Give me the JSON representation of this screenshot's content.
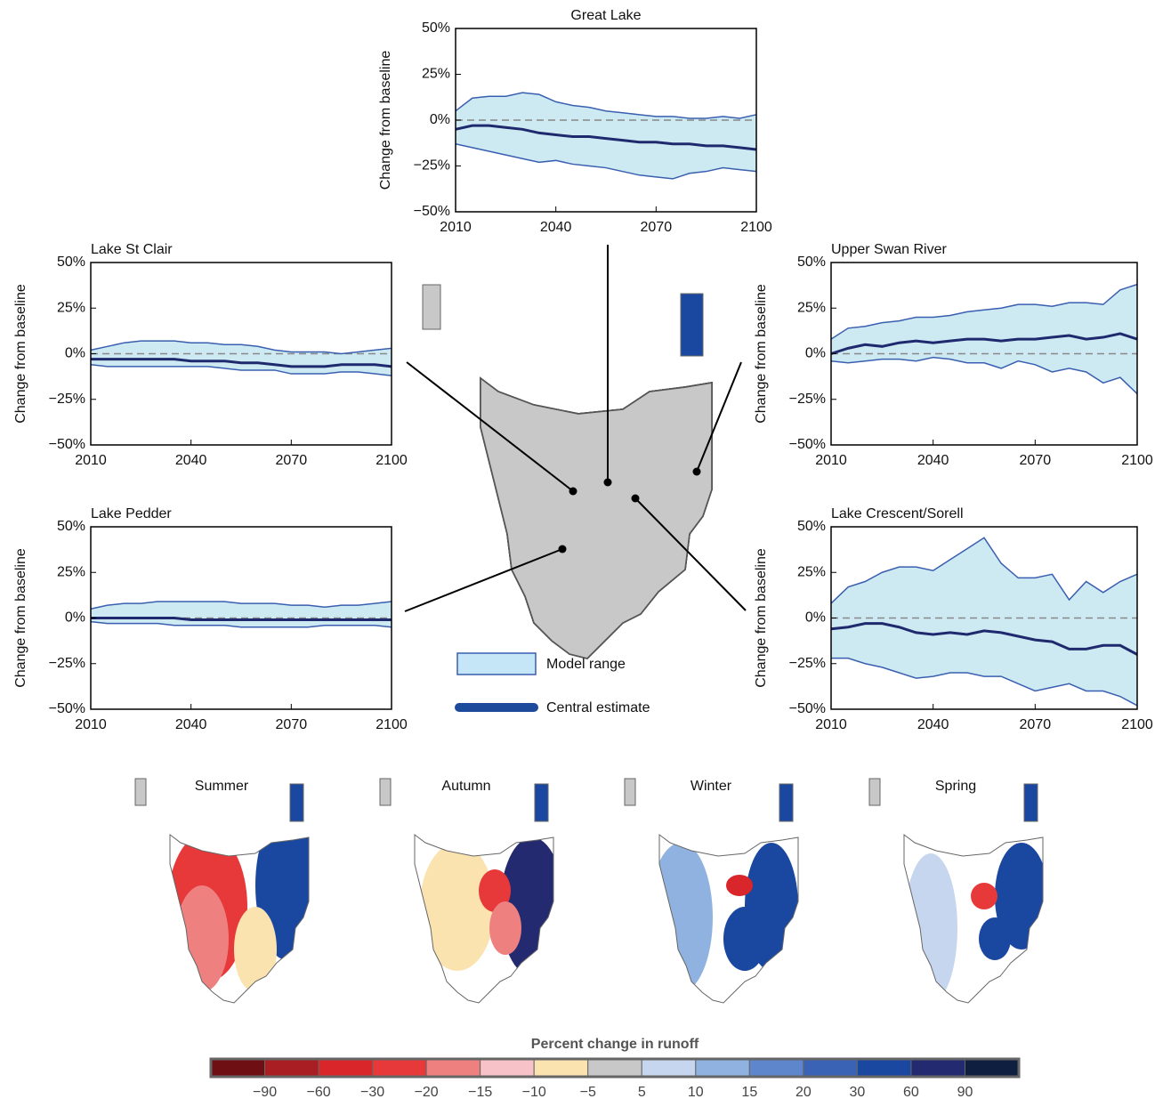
{
  "chart_data": [
    {
      "type": "area",
      "title": "Great Lake",
      "ylabel": "Change from baseline",
      "x": [
        2010,
        2015,
        2020,
        2025,
        2030,
        2035,
        2040,
        2045,
        2050,
        2055,
        2060,
        2065,
        2070,
        2075,
        2080,
        2085,
        2090,
        2095,
        2100
      ],
      "upper": [
        5,
        12,
        13,
        13,
        15,
        14,
        10,
        8,
        7,
        5,
        4,
        3,
        2,
        2,
        1,
        1,
        2,
        1,
        3
      ],
      "central": [
        -5,
        -3,
        -3,
        -4,
        -5,
        -7,
        -8,
        -9,
        -9,
        -10,
        -11,
        -12,
        -12,
        -13,
        -13,
        -14,
        -14,
        -15,
        -16
      ],
      "lower": [
        -13,
        -15,
        -17,
        -19,
        -21,
        -23,
        -22,
        -24,
        -25,
        -26,
        -28,
        -30,
        -31,
        -32,
        -29,
        -28,
        -26,
        -27,
        -28
      ],
      "xlim": [
        2010,
        2100
      ],
      "xticks": [
        2010,
        2040,
        2070,
        2100
      ],
      "ylim": [
        -50,
        50
      ],
      "yticks": [
        {
          "value": -50,
          "label": "−50%"
        },
        {
          "value": -25,
          "label": "−25%"
        },
        {
          "value": 0,
          "label": "0%"
        },
        {
          "value": 25,
          "label": "25%"
        },
        {
          "value": 50,
          "label": "50%"
        }
      ],
      "reference_line": 0,
      "fill_color": "#cdeaf2",
      "line_color": "#3a5fb0",
      "central_color": "#1f2a6e"
    },
    {
      "type": "area",
      "title": "Lake St Clair",
      "ylabel": "Change from baseline",
      "x": [
        2010,
        2015,
        2020,
        2025,
        2030,
        2035,
        2040,
        2045,
        2050,
        2055,
        2060,
        2065,
        2070,
        2075,
        2080,
        2085,
        2090,
        2095,
        2100
      ],
      "upper": [
        2,
        4,
        6,
        7,
        7,
        7,
        6,
        6,
        5,
        5,
        4,
        2,
        1,
        1,
        1,
        0,
        1,
        2,
        3
      ],
      "central": [
        -3,
        -3,
        -3,
        -3,
        -3,
        -3,
        -4,
        -4,
        -4,
        -5,
        -5,
        -6,
        -7,
        -7,
        -7,
        -6,
        -6,
        -6,
        -7
      ],
      "lower": [
        -6,
        -7,
        -7,
        -7,
        -7,
        -7,
        -7,
        -7,
        -8,
        -9,
        -9,
        -9,
        -11,
        -11,
        -11,
        -10,
        -10,
        -11,
        -12
      ],
      "xlim": [
        2010,
        2100
      ],
      "xticks": [
        2010,
        2040,
        2070,
        2100
      ],
      "ylim": [
        -50,
        50
      ],
      "yticks": [
        {
          "value": -50,
          "label": "−50%"
        },
        {
          "value": -25,
          "label": "−25%"
        },
        {
          "value": 0,
          "label": "0%"
        },
        {
          "value": 25,
          "label": "25%"
        },
        {
          "value": 50,
          "label": "50%"
        }
      ],
      "reference_line": 0,
      "fill_color": "#cdeaf2",
      "line_color": "#3a5fb0",
      "central_color": "#1f2a6e"
    },
    {
      "type": "area",
      "title": "Upper Swan River",
      "ylabel": "Change from baseline",
      "x": [
        2010,
        2015,
        2020,
        2025,
        2030,
        2035,
        2040,
        2045,
        2050,
        2055,
        2060,
        2065,
        2070,
        2075,
        2080,
        2085,
        2090,
        2095,
        2100
      ],
      "upper": [
        8,
        14,
        15,
        17,
        18,
        20,
        20,
        21,
        23,
        24,
        25,
        27,
        27,
        26,
        28,
        28,
        27,
        35,
        38
      ],
      "central": [
        0,
        3,
        5,
        4,
        6,
        7,
        6,
        7,
        8,
        8,
        7,
        8,
        8,
        9,
        10,
        8,
        9,
        11,
        8
      ],
      "lower": [
        -4,
        -5,
        -4,
        -3,
        -3,
        -4,
        -2,
        -3,
        -5,
        -5,
        -8,
        -4,
        -6,
        -10,
        -8,
        -10,
        -16,
        -13,
        -22
      ],
      "xlim": [
        2010,
        2100
      ],
      "xticks": [
        2010,
        2040,
        2070,
        2100
      ],
      "ylim": [
        -50,
        50
      ],
      "yticks": [
        {
          "value": -50,
          "label": "−50%"
        },
        {
          "value": -25,
          "label": "−25%"
        },
        {
          "value": 0,
          "label": "0%"
        },
        {
          "value": 25,
          "label": "25%"
        },
        {
          "value": 50,
          "label": "50%"
        }
      ],
      "reference_line": 0,
      "fill_color": "#cdeaf2",
      "line_color": "#3a5fb0",
      "central_color": "#1f2a6e"
    },
    {
      "type": "area",
      "title": "Lake Pedder",
      "ylabel": "Change from baseline",
      "x": [
        2010,
        2015,
        2020,
        2025,
        2030,
        2035,
        2040,
        2045,
        2050,
        2055,
        2060,
        2065,
        2070,
        2075,
        2080,
        2085,
        2090,
        2095,
        2100
      ],
      "upper": [
        5,
        7,
        8,
        8,
        9,
        9,
        9,
        9,
        9,
        8,
        8,
        8,
        7,
        7,
        6,
        7,
        7,
        8,
        9
      ],
      "central": [
        0,
        0,
        0,
        0,
        0,
        0,
        -1,
        -1,
        -1,
        -1,
        -1,
        -1,
        -1,
        -1,
        -1,
        -1,
        -1,
        -1,
        -1
      ],
      "lower": [
        -2,
        -3,
        -3,
        -3,
        -3,
        -4,
        -4,
        -4,
        -4,
        -5,
        -5,
        -5,
        -5,
        -5,
        -4,
        -4,
        -4,
        -4,
        -5
      ],
      "xlim": [
        2010,
        2100
      ],
      "xticks": [
        2010,
        2040,
        2070,
        2100
      ],
      "ylim": [
        -50,
        50
      ],
      "yticks": [
        {
          "value": -50,
          "label": "−50%"
        },
        {
          "value": -25,
          "label": "−25%"
        },
        {
          "value": 0,
          "label": "0%"
        },
        {
          "value": 25,
          "label": "25%"
        },
        {
          "value": 50,
          "label": "50%"
        }
      ],
      "reference_line": 0,
      "fill_color": "#cdeaf2",
      "line_color": "#3a5fb0",
      "central_color": "#1f2a6e"
    },
    {
      "type": "area",
      "title": "Lake Crescent/Sorell",
      "ylabel": "Change from baseline",
      "x": [
        2010,
        2015,
        2020,
        2025,
        2030,
        2035,
        2040,
        2045,
        2050,
        2055,
        2060,
        2065,
        2070,
        2075,
        2080,
        2085,
        2090,
        2095,
        2100
      ],
      "upper": [
        8,
        17,
        20,
        25,
        28,
        28,
        26,
        32,
        38,
        44,
        30,
        22,
        22,
        24,
        10,
        20,
        14,
        20,
        24
      ],
      "central": [
        -6,
        -5,
        -3,
        -3,
        -5,
        -8,
        -9,
        -8,
        -9,
        -7,
        -8,
        -10,
        -12,
        -13,
        -17,
        -17,
        -15,
        -15,
        -20
      ],
      "lower": [
        -22,
        -22,
        -25,
        -27,
        -30,
        -33,
        -32,
        -30,
        -30,
        -32,
        -32,
        -36,
        -40,
        -38,
        -36,
        -40,
        -40,
        -43,
        -48
      ],
      "xlim": [
        2010,
        2100
      ],
      "xticks": [
        2010,
        2040,
        2070,
        2100
      ],
      "ylim": [
        -50,
        50
      ],
      "yticks": [
        {
          "value": -50,
          "label": "−50%"
        },
        {
          "value": -25,
          "label": "−25%"
        },
        {
          "value": 0,
          "label": "0%"
        },
        {
          "value": 25,
          "label": "25%"
        },
        {
          "value": 50,
          "label": "50%"
        }
      ],
      "reference_line": 0,
      "fill_color": "#cdeaf2",
      "line_color": "#3a5fb0",
      "central_color": "#1f2a6e"
    }
  ],
  "legend": {
    "items": [
      {
        "label": "Model range",
        "color": "#c4e6f6"
      },
      {
        "label": "Central estimate",
        "color": "#1d4a9a"
      }
    ]
  },
  "season_maps": [
    "Summer",
    "Autumn",
    "Winter",
    "Spring"
  ],
  "colorbar": {
    "title": "Percent change in runoff",
    "colors": [
      "#6e0f14",
      "#a81e22",
      "#d8262b",
      "#e8393a",
      "#ee8080",
      "#f8c3c8",
      "#fbe3b0",
      "#c8c8c8",
      "#c5d6ee",
      "#8fb2e0",
      "#5d86cc",
      "#3a62b5",
      "#1a47a0",
      "#232a70",
      "#0f1f3f"
    ],
    "ticks": [
      {
        "value": -90,
        "label": "−90"
      },
      {
        "value": -60,
        "label": "−60"
      },
      {
        "value": -30,
        "label": "−30"
      },
      {
        "value": -20,
        "label": "−20"
      },
      {
        "value": -15,
        "label": "−15"
      },
      {
        "value": -10,
        "label": "−10"
      },
      {
        "value": -5,
        "label": "−5"
      },
      5,
      10,
      15,
      20,
      30,
      60,
      90
    ]
  }
}
